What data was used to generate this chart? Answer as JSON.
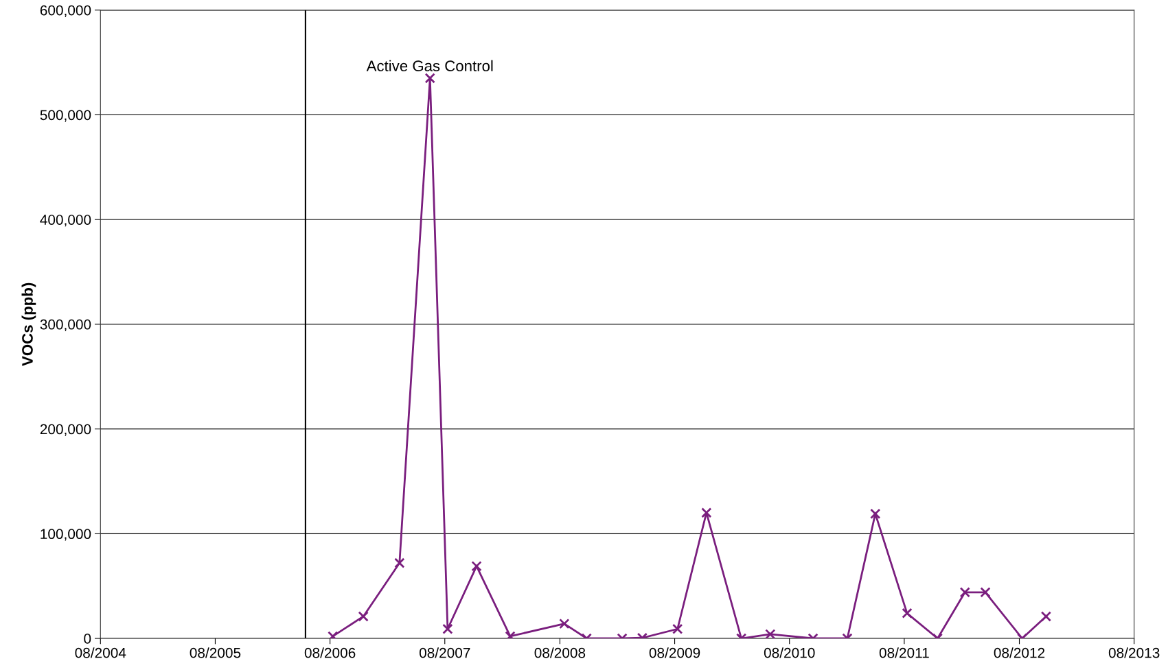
{
  "chart_data": {
    "type": "line",
    "ylabel": "VOCs (ppb)",
    "x": [
      "2006-08-10",
      "2006-11-15",
      "2007-03-10",
      "2007-06-15",
      "2007-08-10",
      "2007-11-10",
      "2008-02-25",
      "2008-08-15",
      "2008-10-25",
      "2009-02-15",
      "2009-04-20",
      "2009-08-10",
      "2009-11-10",
      "2010-03-01",
      "2010-06-01",
      "2010-10-15",
      "2011-02-01",
      "2011-05-01",
      "2011-08-10",
      "2011-11-15",
      "2012-02-10",
      "2012-04-15",
      "2012-08-10",
      "2012-10-25"
    ],
    "series": [
      {
        "color": "#7a1e7e",
        "values": [
          2000,
          21000,
          72000,
          535000,
          9000,
          69000,
          2000,
          14000,
          0,
          0,
          500,
          9000,
          120000,
          0,
          4000,
          0,
          0,
          119000,
          24000,
          0,
          44000,
          44000,
          0,
          21000
        ]
      }
    ],
    "marker": "cross",
    "line_style": "solid",
    "grid": "y",
    "xlim": [
      "2004-08-01",
      "2013-08-01"
    ],
    "xticks": [
      {
        "value": "2004-08-01",
        "label": "08/2004"
      },
      {
        "value": "2005-08-01",
        "label": "08/2005"
      },
      {
        "value": "2006-08-01",
        "label": "08/2006"
      },
      {
        "value": "2007-08-01",
        "label": "08/2007"
      },
      {
        "value": "2008-08-01",
        "label": "08/2008"
      },
      {
        "value": "2009-08-01",
        "label": "08/2009"
      },
      {
        "value": "2010-08-01",
        "label": "08/2010"
      },
      {
        "value": "2011-08-01",
        "label": "08/2011"
      },
      {
        "value": "2012-08-01",
        "label": "08/2012"
      },
      {
        "value": "2013-08-01",
        "label": "08/2013"
      }
    ],
    "ylim": [
      0,
      600000
    ],
    "yticks": [
      {
        "value": 0,
        "label": "0"
      },
      {
        "value": 100000,
        "label": "100,000"
      },
      {
        "value": 200000,
        "label": "200,000"
      },
      {
        "value": 300000,
        "label": "300,000"
      },
      {
        "value": 400000,
        "label": "400,000"
      },
      {
        "value": 500000,
        "label": "500,000"
      },
      {
        "value": 600000,
        "label": "600,000"
      }
    ],
    "ref_lines": [
      {
        "axis": "x",
        "value": "2006-05-15",
        "color": "#000000"
      }
    ],
    "annotations": [
      {
        "text": "Active Gas Control",
        "x": "2007-06-15",
        "y": 535000
      }
    ]
  }
}
